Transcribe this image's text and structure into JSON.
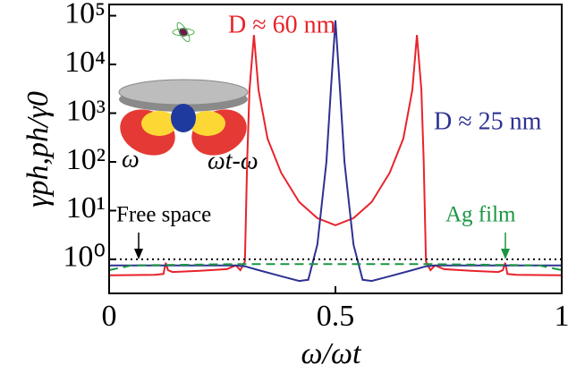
{
  "chart_data": {
    "type": "line",
    "y_label": "γph,ph/γ0",
    "x_label": "ω/ωt",
    "xlim": [
      0,
      1
    ],
    "xticks": [
      0,
      0.5,
      1
    ],
    "ylim": [
      0.2,
      170000
    ],
    "log_y": true,
    "yticks": [
      {
        "value": 1,
        "label": "10⁰"
      },
      {
        "value": 10,
        "label": "10¹"
      },
      {
        "value": 100,
        "label": "10²"
      },
      {
        "value": 1000,
        "label": "10³"
      },
      {
        "value": 10000,
        "label": "10⁴"
      },
      {
        "value": 100000,
        "label": "10⁵"
      }
    ],
    "series": [
      {
        "name": "D ≈ 60 nm",
        "color": "#e8232b",
        "style": "solid",
        "x": [
          0,
          0.1,
          0.12,
          0.125,
          0.13,
          0.14,
          0.2,
          0.26,
          0.28,
          0.29,
          0.3,
          0.305,
          0.31,
          0.32,
          0.33,
          0.35,
          0.38,
          0.42,
          0.46,
          0.5,
          0.54,
          0.58,
          0.62,
          0.65,
          0.67,
          0.68,
          0.69,
          0.695,
          0.7,
          0.71,
          0.72,
          0.74,
          0.8,
          0.86,
          0.87,
          0.875,
          0.88,
          0.9,
          1
        ],
        "values": [
          0.47,
          0.48,
          0.5,
          0.85,
          0.6,
          0.55,
          0.58,
          0.63,
          0.75,
          0.6,
          0.9,
          100,
          3000,
          40000,
          3000,
          300,
          60,
          15,
          7,
          5,
          7,
          15,
          60,
          300,
          3000,
          40000,
          3000,
          100,
          0.9,
          0.6,
          0.75,
          0.63,
          0.58,
          0.55,
          0.6,
          0.85,
          0.5,
          0.48,
          0.47
        ]
      },
      {
        "name": "D ≈ 25 nm",
        "color": "#2e3192",
        "style": "solid",
        "x": [
          0,
          0.28,
          0.3,
          0.33,
          0.38,
          0.42,
          0.44,
          0.46,
          0.48,
          0.49,
          0.5,
          0.51,
          0.52,
          0.54,
          0.56,
          0.58,
          0.62,
          0.67,
          0.7,
          0.72,
          1
        ],
        "values": [
          0.75,
          0.75,
          0.72,
          0.6,
          0.45,
          0.36,
          0.38,
          2,
          100,
          3000,
          80000,
          3000,
          100,
          2,
          0.38,
          0.36,
          0.45,
          0.6,
          0.72,
          0.75,
          0.75
        ]
      },
      {
        "name": "Ag film",
        "color": "#1a9641",
        "style": "dashed",
        "x": [
          0,
          0.05,
          0.3,
          0.7,
          0.95,
          1
        ],
        "values": [
          0.6,
          0.75,
          0.8,
          0.8,
          0.75,
          0.6
        ]
      },
      {
        "name": "Free space",
        "color": "#000000",
        "style": "dotted",
        "x": [
          0,
          1
        ],
        "values": [
          1,
          1
        ]
      }
    ],
    "inset_labels": [
      "ω",
      "ωt-ω"
    ]
  }
}
